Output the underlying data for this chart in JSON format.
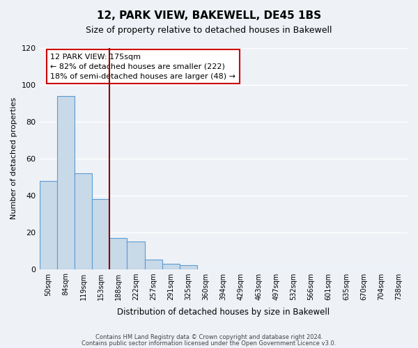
{
  "title": "12, PARK VIEW, BAKEWELL, DE45 1BS",
  "subtitle": "Size of property relative to detached houses in Bakewell",
  "xlabel": "Distribution of detached houses by size in Bakewell",
  "ylabel": "Number of detached properties",
  "bar_values": [
    48,
    94,
    52,
    38,
    17,
    15,
    5,
    3,
    2,
    0,
    0,
    0,
    0,
    0,
    0,
    0,
    0,
    0,
    0,
    0,
    0
  ],
  "bin_labels": [
    "50sqm",
    "84sqm",
    "119sqm",
    "153sqm",
    "188sqm",
    "222sqm",
    "257sqm",
    "291sqm",
    "325sqm",
    "360sqm",
    "394sqm",
    "429sqm",
    "463sqm",
    "497sqm",
    "532sqm",
    "566sqm",
    "601sqm",
    "635sqm",
    "670sqm",
    "704sqm",
    "738sqm"
  ],
  "bar_color": "#c8d9e8",
  "bar_edge_color": "#5b9bd5",
  "ref_line_x": 4,
  "ref_line_color": "#8b0000",
  "annotation_line1": "12 PARK VIEW: 175sqm",
  "annotation_line2": "← 82% of detached houses are smaller (222)",
  "annotation_line3": "18% of semi-detached houses are larger (48) →",
  "annotation_box_color": "#ffffff",
  "annotation_box_edge": "#cc0000",
  "ylim": [
    0,
    120
  ],
  "yticks": [
    0,
    20,
    40,
    60,
    80,
    100,
    120
  ],
  "footer1": "Contains HM Land Registry data © Crown copyright and database right 2024.",
  "footer2": "Contains public sector information licensed under the Open Government Licence v3.0.",
  "bg_color": "#eef2f7",
  "grid_color": "#ffffff"
}
